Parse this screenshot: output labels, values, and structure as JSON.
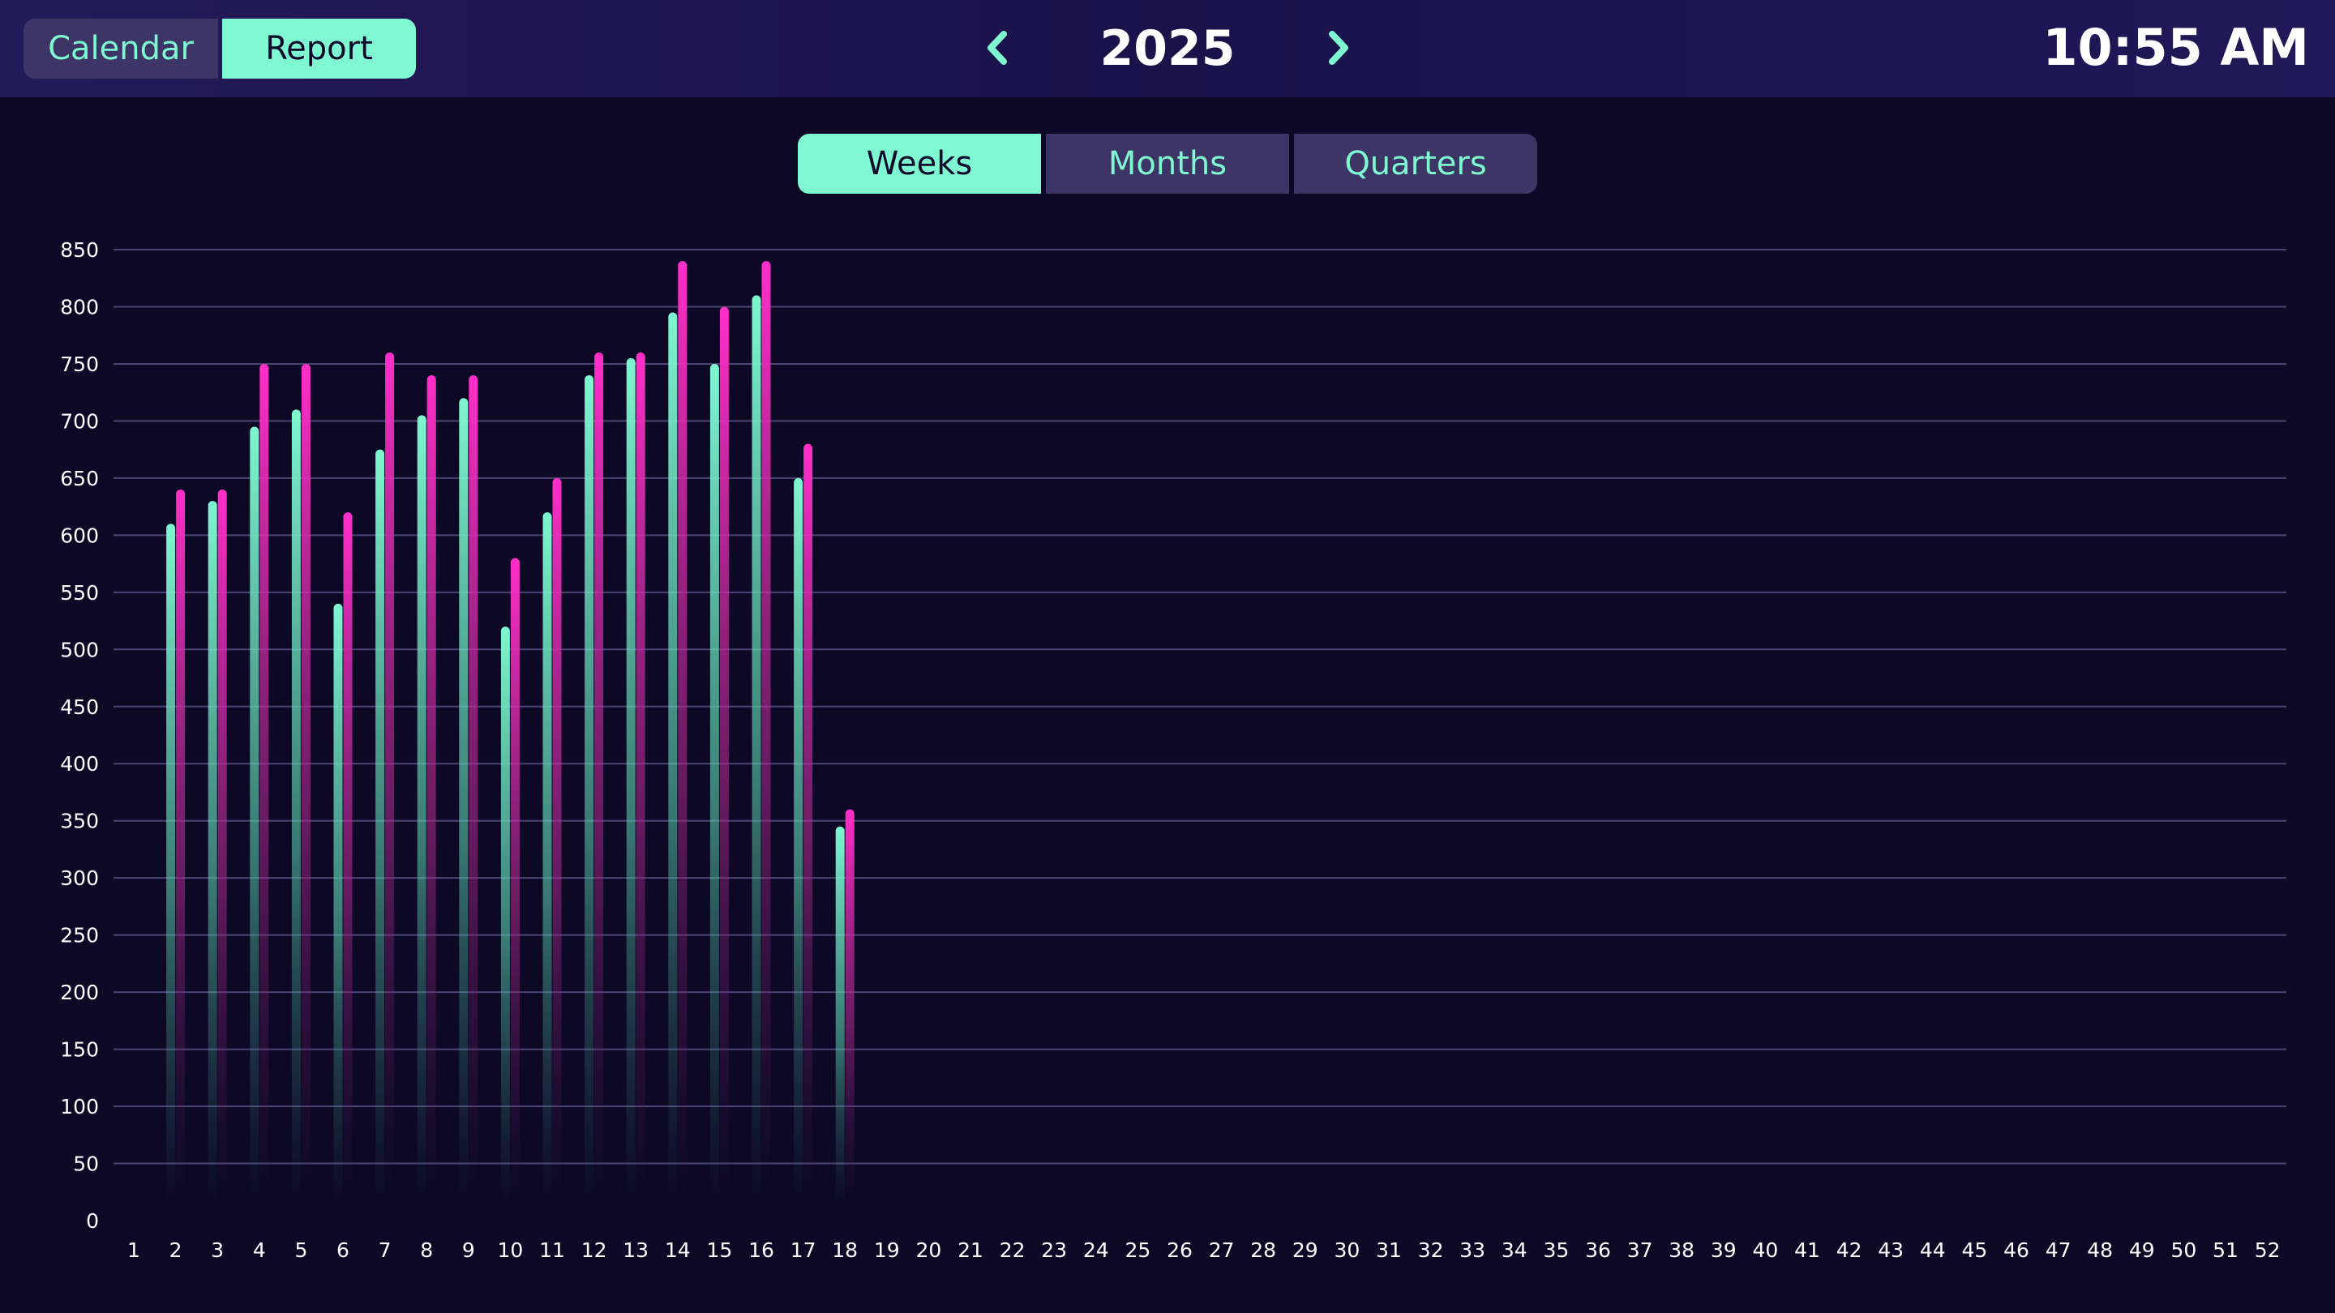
{
  "header": {
    "view_toggle": [
      "Calendar",
      "Report"
    ],
    "active_view": "Report",
    "year": "2025",
    "clock": "10:55 AM",
    "prev_icon": "chevron-left-icon",
    "next_icon": "chevron-right-icon"
  },
  "period_tabs": {
    "items": [
      "Weeks",
      "Months",
      "Quarters"
    ],
    "active": "Weeks"
  },
  "colors": {
    "background": "#0c0826",
    "accent": "#7ff7d0",
    "series_a": "#7ff7d0",
    "series_b": "#ff2fc9",
    "inactive": "#3d3566"
  },
  "chart_data": {
    "type": "bar",
    "categories": [
      "1",
      "2",
      "3",
      "4",
      "5",
      "6",
      "7",
      "8",
      "9",
      "10",
      "11",
      "12",
      "13",
      "14",
      "15",
      "16",
      "17",
      "18",
      "19",
      "20",
      "21",
      "22",
      "23",
      "24",
      "25",
      "26",
      "27",
      "28",
      "29",
      "30",
      "31",
      "32",
      "33",
      "34",
      "35",
      "36",
      "37",
      "38",
      "39",
      "40",
      "41",
      "42",
      "43",
      "44",
      "45",
      "46",
      "47",
      "48",
      "49",
      "50",
      "51",
      "52"
    ],
    "series": [
      {
        "values": [
          null,
          610,
          630,
          695,
          710,
          540,
          675,
          705,
          720,
          520,
          620,
          740,
          755,
          795,
          750,
          810,
          650,
          345,
          null,
          null,
          null,
          null,
          null,
          null,
          null,
          null,
          null,
          null,
          null,
          null,
          null,
          null,
          null,
          null,
          null,
          null,
          null,
          null,
          null,
          null,
          null,
          null,
          null,
          null,
          null,
          null,
          null,
          null,
          null,
          null,
          null,
          null
        ]
      },
      {
        "values": [
          null,
          640,
          640,
          750,
          750,
          620,
          760,
          740,
          740,
          580,
          650,
          760,
          760,
          840,
          800,
          840,
          680,
          360,
          null,
          null,
          null,
          null,
          null,
          null,
          null,
          null,
          null,
          null,
          null,
          null,
          null,
          null,
          null,
          null,
          null,
          null,
          null,
          null,
          null,
          null,
          null,
          null,
          null,
          null,
          null,
          null,
          null,
          null,
          null,
          null,
          null,
          null
        ]
      }
    ],
    "y_ticks": [
      "0",
      "50",
      "100",
      "150",
      "200",
      "250",
      "300",
      "350",
      "400",
      "450",
      "500",
      "550",
      "600",
      "650",
      "700",
      "750",
      "800",
      "850"
    ],
    "ylim": [
      0,
      850
    ],
    "grid": true,
    "legend": "none"
  }
}
